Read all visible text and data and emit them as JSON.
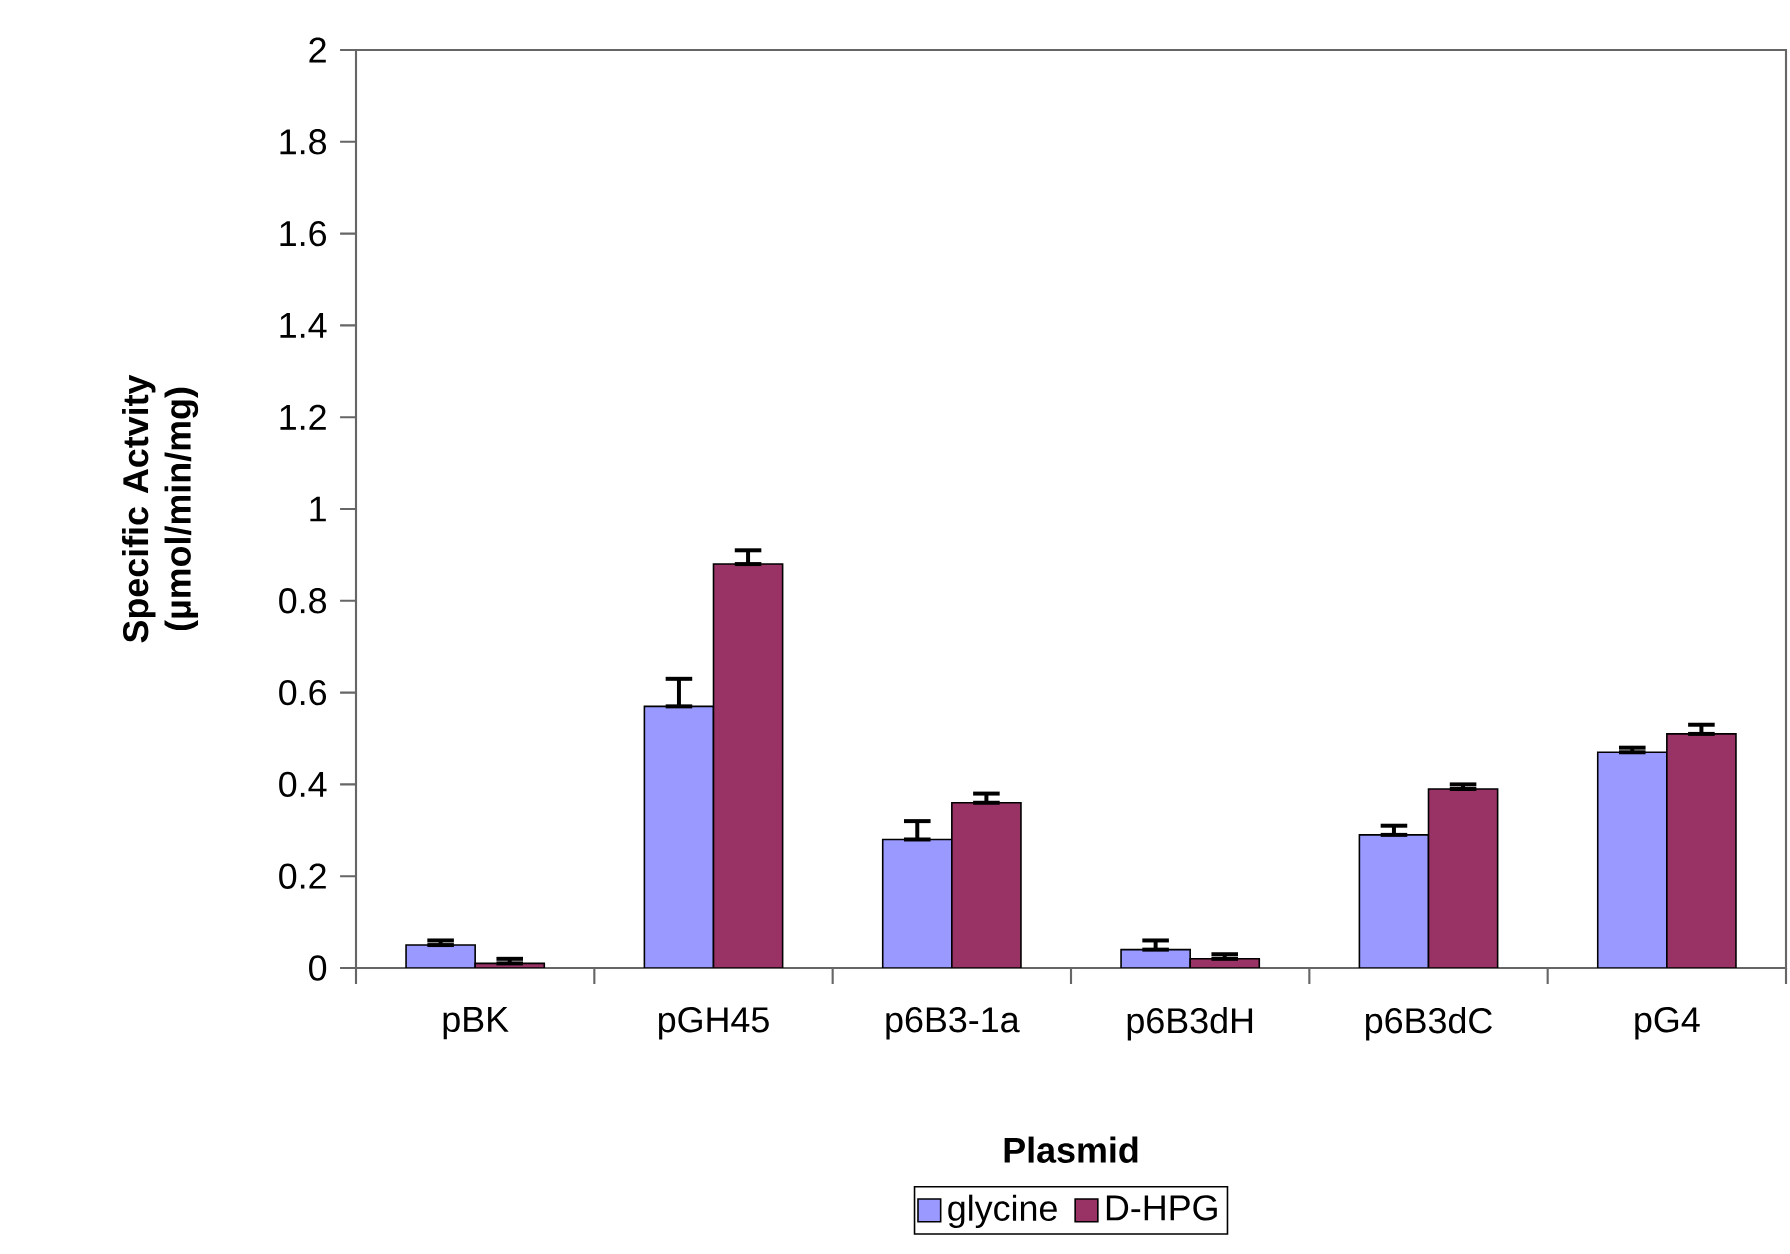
{
  "chart_data": {
    "type": "bar",
    "xlabel": "Plasmid",
    "ylabel": "Specific Actvity (µmol/min/mg)",
    "categories": [
      "pBK",
      "pGH45",
      "p6B3-1a",
      "p6B3dH",
      "p6B3dC",
      "pG4"
    ],
    "series": [
      {
        "name": "glycine",
        "color": "#9999ff",
        "values": [
          0.05,
          0.57,
          0.28,
          0.04,
          0.29,
          0.47
        ],
        "errors": [
          [
            0.05,
            0.06
          ],
          [
            0.57,
            0.63
          ],
          [
            0.28,
            0.32
          ],
          [
            0.04,
            0.06
          ],
          [
            0.29,
            0.31
          ],
          [
            0.47,
            0.48
          ]
        ]
      },
      {
        "name": "D-HPG",
        "color": "#993366",
        "values": [
          0.01,
          0.88,
          0.36,
          0.02,
          0.39,
          0.51
        ],
        "errors": [
          [
            0.01,
            0.02
          ],
          [
            0.88,
            0.91
          ],
          [
            0.36,
            0.38
          ],
          [
            0.02,
            0.03
          ],
          [
            0.39,
            0.4
          ],
          [
            0.51,
            0.53
          ]
        ]
      }
    ],
    "ylim": [
      0,
      2
    ],
    "yticks": [
      0,
      0.2,
      0.4,
      0.6,
      0.8,
      1,
      1.2,
      1.4,
      1.6,
      1.8,
      2
    ],
    "legend": "bottom"
  }
}
